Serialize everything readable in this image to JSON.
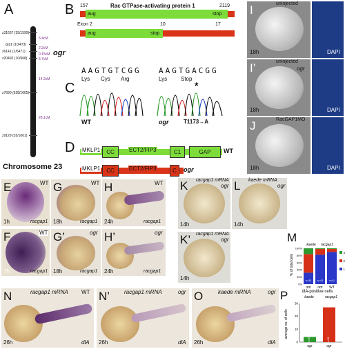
{
  "panels": {
    "A": {
      "letter": "A",
      "markers": [
        "z31657 (35/1599)",
        "grp1 (10/473)",
        "z6141 (1/6471)",
        "z20492 (10/968)",
        "z7690 (628/1605)",
        "z9129 (35/1601)"
      ],
      "distances": [
        "6.4cM",
        "2.2cM",
        "0.15cM",
        "5.7cM",
        "14.2cM",
        "28.1cM"
      ],
      "gene": "ogr",
      "caption": "Chromosome 23"
    },
    "B": {
      "letter": "B",
      "start_num": "157",
      "end_num": "2119",
      "title": "Rac GTPase-activating protein 1",
      "aug_label": "aug",
      "stop_label": "stop",
      "exon_label": "Exon 2",
      "exon_10": "10",
      "exon_17": "17"
    },
    "C": {
      "letter": "C",
      "wt_seq": "AAGTGTCGG",
      "wt_aa": [
        "Lys",
        "Cys",
        "Arg"
      ],
      "ogr_seq": "AAGTGACGG",
      "ogr_aa": [
        "Lys",
        "Stop"
      ],
      "star": "*",
      "wt_label": "WT",
      "ogr_label": "ogr",
      "mutation": "T1173→A"
    },
    "D": {
      "letter": "D",
      "wt_domains": [
        "MKLP1",
        "CC",
        "ECT2/FIP3",
        "C1",
        "GAP"
      ],
      "wt_label": "WT",
      "ogr_domains": [
        "MKLP1",
        "CC",
        "ECT2/FIP3",
        "C"
      ],
      "ogr_label": "ogr",
      "colors": {
        "green": "#7ddc3a",
        "red": "#d93418"
      }
    },
    "I": {
      "letter": "I",
      "top": "uninjected",
      "stage": "18h",
      "dapi": "DAPI"
    },
    "I2": {
      "letter": "I’",
      "top": "uninjected",
      "gene": "ogr",
      "stage": "18h",
      "dapi": "DAPI"
    },
    "J": {
      "letter": "J",
      "top": "RacGAP1MO",
      "stage": "18h",
      "dapi": "DAPI"
    },
    "E": {
      "letter": "E",
      "genotype": "WT",
      "stage": "1h",
      "probe": "racgap1"
    },
    "F": {
      "letter": "F",
      "genotype": "WT",
      "stage": "7h",
      "probe": "racgap1"
    },
    "G": {
      "letter": "G",
      "genotype": "WT",
      "stage": "18h",
      "probe": "racgap1"
    },
    "G2": {
      "letter": "G’",
      "genotype": "ogr",
      "stage": "18h",
      "probe": "racgap1"
    },
    "H": {
      "letter": "H",
      "genotype": "WT",
      "stage": "24h",
      "probe": "racgap1"
    },
    "H2": {
      "letter": "H’",
      "genotype": "ogr",
      "stage": "24h",
      "probe": "racgap1"
    },
    "K": {
      "letter": "K",
      "top": "racgap1 mRNA",
      "genotype": "ogr",
      "stage": "14h"
    },
    "K2": {
      "letter": "K’",
      "top": "racgap1 mRNA",
      "genotype": "ogr",
      "stage": "14h"
    },
    "L": {
      "letter": "L",
      "top": "kaede mRNA",
      "genotype": "ogr",
      "stage": "14h"
    },
    "M": {
      "letter": "M",
      "headers": [
        "kaede",
        "racgap1"
      ],
      "ylabel": "% of total cells",
      "xcats": [
        "ogr",
        "ogr",
        "WT"
      ],
      "legend": [
        "4",
        "2",
        "1"
      ],
      "ticks": [
        "100%",
        "80%",
        "60%",
        "40%",
        "20%",
        "0%"
      ],
      "bars_inside": [
        "n=33",
        "n=43",
        "n=41"
      ]
    },
    "N": {
      "letter": "N",
      "top": "racgap1 mRNA",
      "genotype": "WT",
      "stage": "26h",
      "probe": "dlA"
    },
    "N2": {
      "letter": "N’",
      "top": "racgap1 mRNA",
      "genotype": "ogr",
      "stage": "26h",
      "probe": "dlA"
    },
    "O": {
      "letter": "O",
      "top": "kaede mRNA",
      "genotype": "ogr",
      "stage": "26h",
      "probe": "dlA"
    },
    "P": {
      "letter": "P",
      "title": "dlA-positive cells",
      "headers": [
        "kaede",
        "racgap1"
      ],
      "ylabel": "average no. of cells",
      "xcats": [
        "ogr",
        "ogr"
      ],
      "bar_ns": [
        "n=36",
        "n=36"
      ],
      "ticks": [
        "30",
        "20",
        "10",
        "0"
      ]
    }
  },
  "chart_data": [
    {
      "type": "bar",
      "title": "",
      "categories": [
        "kaede ogr",
        "racgap1 ogr",
        "racgap1 WT"
      ],
      "series": [
        {
          "name": "1",
          "values": [
            32,
            82,
            90
          ]
        },
        {
          "name": "2",
          "values": [
            52,
            16,
            8
          ]
        },
        {
          "name": "4",
          "values": [
            16,
            2,
            2
          ]
        }
      ],
      "ylabel": "% of total cells",
      "ylim": [
        0,
        100
      ],
      "stacked": true
    },
    {
      "type": "bar",
      "title": "dlA-positive cells",
      "categories": [
        "kaede ogr",
        "racgap1 ogr"
      ],
      "values": [
        4,
        27
      ],
      "ylabel": "average no. of cells",
      "ylim": [
        0,
        30
      ]
    }
  ]
}
